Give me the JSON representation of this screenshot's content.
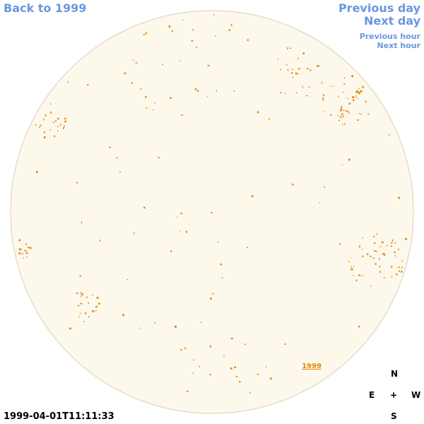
{
  "nav": {
    "back": "Back to 1999",
    "previous_day": "Previous day",
    "next_day": "Next day",
    "previous_hour": "Previous hour",
    "next_hour": "Next hour"
  },
  "disk_label": "1999",
  "timestamp": "1999-04-01T11:11:33",
  "compass": {
    "north": "N",
    "east": "E",
    "center": "+",
    "west": "W",
    "south": "S"
  }
}
